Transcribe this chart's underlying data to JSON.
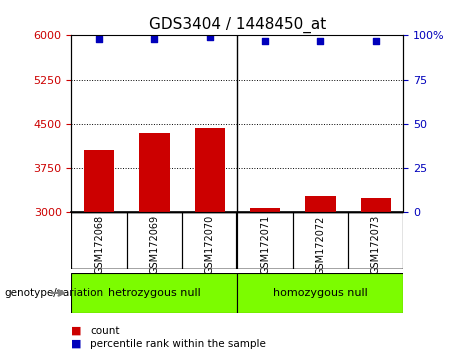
{
  "title": "GDS3404 / 1448450_at",
  "samples": [
    "GSM172068",
    "GSM172069",
    "GSM172070",
    "GSM172071",
    "GSM172072",
    "GSM172073"
  ],
  "counts": [
    4050,
    4350,
    4430,
    3080,
    3270,
    3250
  ],
  "percentile_ranks": [
    98,
    98,
    99,
    97,
    97,
    97
  ],
  "group_labels": [
    "hetrozygous null",
    "homozygous null"
  ],
  "group_label_corrected": [
    "hetrozygous null",
    "homozygous null"
  ],
  "ylim_left": [
    3000,
    6000
  ],
  "ylim_right": [
    0,
    100
  ],
  "yticks_left": [
    3000,
    3750,
    4500,
    5250,
    6000
  ],
  "yticks_right": [
    0,
    25,
    50,
    75,
    100
  ],
  "bar_color": "#cc0000",
  "dot_color": "#0000bb",
  "bar_width": 0.55,
  "group_fill": "#7cfc00",
  "xlabel_genotype": "genotype/variation",
  "legend_count": "count",
  "legend_percentile": "percentile rank within the sample",
  "tick_label_color_left": "#cc0000",
  "tick_label_color_right": "#0000bb",
  "bg_label_color": "#c8c8c8",
  "title_fontsize": 11
}
